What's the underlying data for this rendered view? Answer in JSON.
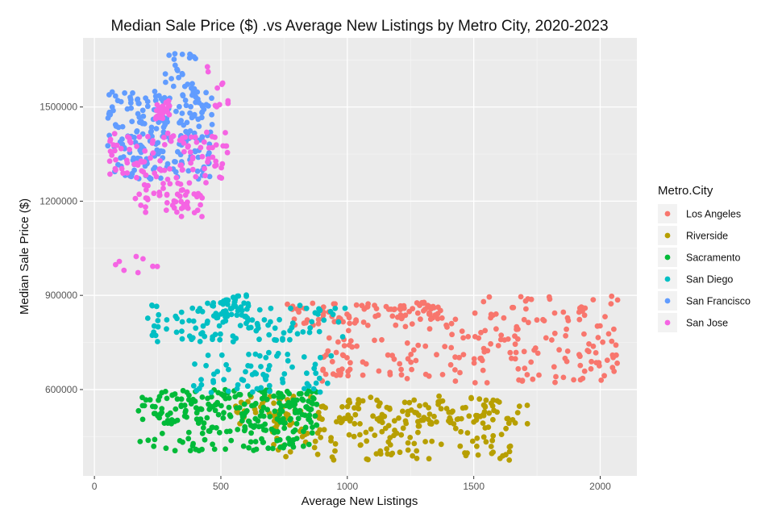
{
  "chart_data": {
    "type": "scatter",
    "title": "Median Sale Price ($) .vs Average New Listings by Metro City, 2020-2023",
    "xlabel": "Average New Listings",
    "ylabel": "Median Sale Price ($)",
    "xlim": [
      -45,
      2145
    ],
    "ylim": [
      325000,
      1720000
    ],
    "x_ticks": [
      0,
      500,
      1000,
      1500,
      2000
    ],
    "x_tick_labels": [
      "0",
      "500",
      "1000",
      "1500",
      "2000"
    ],
    "y_ticks": [
      600000,
      900000,
      1200000,
      1500000
    ],
    "y_tick_labels": [
      "600000",
      "900000",
      "1200000",
      "1500000"
    ],
    "grid": true,
    "legend_position": "right",
    "legend_title": "Metro.City",
    "series": [
      {
        "name": "Los Angeles",
        "color": "#F8766D",
        "clusters": [
          {
            "x": [
              760,
              1260
            ],
            "y": [
              790000,
              880000
            ],
            "n": 60
          },
          {
            "x": [
              1180,
              1380
            ],
            "y": [
              820000,
              880000
            ],
            "n": 40
          },
          {
            "x": [
              1300,
              1600
            ],
            "y": [
              620000,
              850000
            ],
            "n": 35
          },
          {
            "x": [
              1500,
              2070
            ],
            "y": [
              620000,
              900000
            ],
            "n": 120
          },
          {
            "x": [
              900,
              1300
            ],
            "y": [
              620000,
              760000
            ],
            "n": 40
          },
          {
            "x": [
              880,
              1020
            ],
            "y": [
              640000,
              790000
            ],
            "n": 15
          }
        ]
      },
      {
        "name": "Riverside",
        "color": "#B79F00",
        "clusters": [
          {
            "x": [
              540,
              1720
            ],
            "y": [
              490000,
              580000
            ],
            "n": 150
          },
          {
            "x": [
              700,
              1650
            ],
            "y": [
              375000,
              520000
            ],
            "n": 130
          }
        ]
      },
      {
        "name": "Sacramento",
        "color": "#00BA38",
        "clusters": [
          {
            "x": [
              170,
              880
            ],
            "y": [
              500000,
              600000
            ],
            "n": 180
          },
          {
            "x": [
              260,
              880
            ],
            "y": [
              460000,
              500000
            ],
            "n": 55
          },
          {
            "x": [
              180,
              850
            ],
            "y": [
              405000,
              445000
            ],
            "n": 45
          }
        ]
      },
      {
        "name": "San Diego",
        "color": "#00BFC4",
        "clusters": [
          {
            "x": [
              200,
              1000
            ],
            "y": [
              750000,
              880000
            ],
            "n": 110
          },
          {
            "x": [
              470,
              610
            ],
            "y": [
              820000,
              905000
            ],
            "n": 40
          },
          {
            "x": [
              370,
              960
            ],
            "y": [
              590000,
              720000
            ],
            "n": 70
          }
        ]
      },
      {
        "name": "San Francisco",
        "color": "#619CFF",
        "clusters": [
          {
            "x": [
              50,
              470
            ],
            "y": [
              1270000,
              1550000
            ],
            "n": 230
          },
          {
            "x": [
              280,
              410
            ],
            "y": [
              1550000,
              1670000
            ],
            "n": 25
          }
        ]
      },
      {
        "name": "San Jose",
        "color": "#F564E3",
        "clusters": [
          {
            "x": [
              60,
              530
            ],
            "y": [
              1250000,
              1420000
            ],
            "n": 110
          },
          {
            "x": [
              240,
              300
            ],
            "y": [
              1460000,
              1520000
            ],
            "n": 25
          },
          {
            "x": [
              150,
              430
            ],
            "y": [
              1150000,
              1250000
            ],
            "n": 50
          },
          {
            "x": [
              440,
              530
            ],
            "y": [
              1500000,
              1630000
            ],
            "n": 10
          },
          {
            "x": [
              60,
              320
            ],
            "y": [
              960000,
              1030000
            ],
            "n": 8
          }
        ]
      }
    ]
  }
}
